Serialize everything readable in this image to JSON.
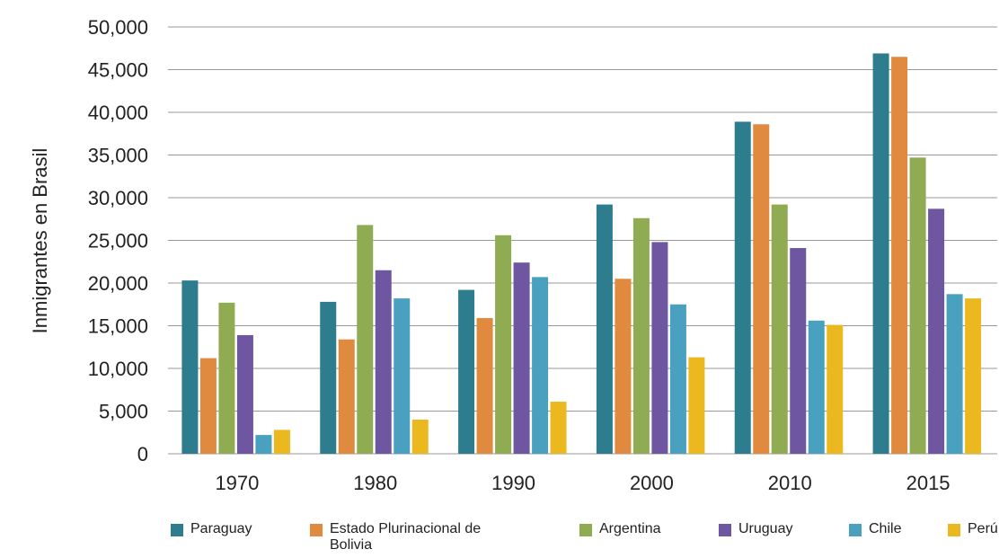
{
  "chart_data": {
    "type": "bar",
    "y_label": "Inmigrantes en Brasil",
    "categories": [
      "1970",
      "1980",
      "1990",
      "2000",
      "2010",
      "2015"
    ],
    "series": [
      {
        "name": "Paraguay",
        "color": "#2e7d8f",
        "values": [
          20300,
          17800,
          19200,
          29200,
          38900,
          46900
        ]
      },
      {
        "name": "Estado Plurinacional de Bolivia",
        "color": "#e08a40",
        "values": [
          11200,
          13400,
          15900,
          20500,
          38600,
          46500
        ]
      },
      {
        "name": "Argentina",
        "color": "#8fac52",
        "values": [
          17700,
          26800,
          25600,
          27600,
          29200,
          34700
        ]
      },
      {
        "name": "Uruguay",
        "color": "#6e57a0",
        "values": [
          13900,
          21500,
          22400,
          24800,
          24100,
          28700
        ]
      },
      {
        "name": "Chile",
        "color": "#4aa0bf",
        "values": [
          2200,
          18200,
          20700,
          17500,
          15600,
          18700
        ]
      },
      {
        "name": "Perú",
        "color": "#ecb820",
        "values": [
          2800,
          4000,
          6100,
          11300,
          15100,
          18200
        ]
      }
    ],
    "ylim": [
      0,
      50000
    ],
    "yticks": [
      0,
      {
        "value": 5000,
        "label": "5,000"
      },
      {
        "value": 10000,
        "label": "10,000"
      },
      {
        "value": 15000,
        "label": "15,000"
      },
      {
        "value": 20000,
        "label": "20,000"
      },
      {
        "value": 25000,
        "label": "25,000"
      },
      {
        "value": 30000,
        "label": "30,000"
      },
      {
        "value": 35000,
        "label": "35,000"
      },
      {
        "value": 40000,
        "label": "40,000"
      },
      {
        "value": 45000,
        "label": "45,000"
      },
      {
        "value": 50000,
        "label": "50,000"
      }
    ],
    "grid": true,
    "legend": "bottom"
  }
}
